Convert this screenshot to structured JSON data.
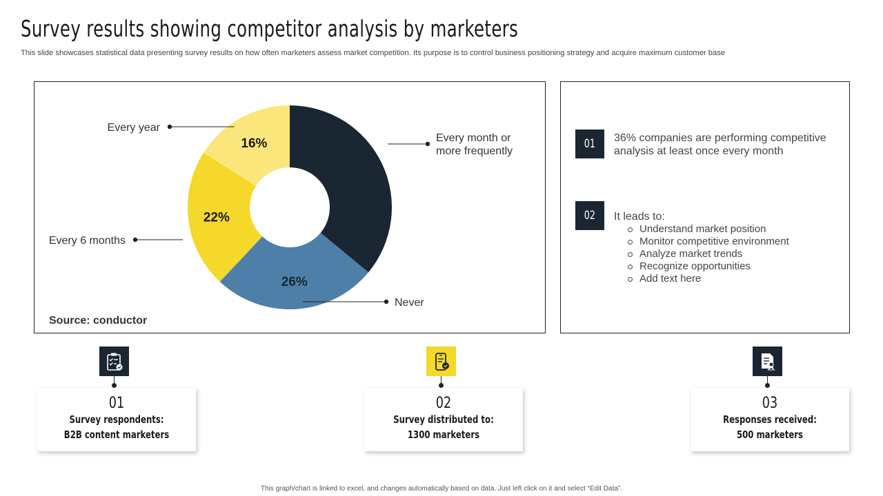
{
  "header": {
    "title": "Survey results showing competitor analysis by marketers",
    "subtitle": "This slide showcases statistical data presenting survey results on how often marketers assess market competition. Its purpose is to control business positioning strategy and acquire maximum customer base"
  },
  "chart_data": {
    "type": "pie",
    "variant": "donut",
    "categories": [
      "Every month or more frequently",
      "Never",
      "Every 6 months",
      "Every year"
    ],
    "values": [
      36,
      26,
      22,
      16
    ],
    "value_labels": [
      "36%",
      "26%",
      "22%",
      "16%"
    ],
    "colors": [
      "#1a2631",
      "#4d7fa8",
      "#f5d82a",
      "#fbe67c"
    ],
    "source": "Source: conductor"
  },
  "insights": [
    {
      "badge": "01",
      "text": "36% companies are performing competitive analysis at least once every month"
    },
    {
      "badge": "02",
      "text": "It leads to:",
      "bullets": [
        "Understand market position",
        "Monitor competitive environment",
        "Analyze market trends",
        "Recognize opportunities",
        "Add text here"
      ]
    }
  ],
  "stats": [
    {
      "number": "01",
      "line1": "Survey respondents:",
      "line2": "B2B content marketers",
      "icon": "clipboard-checklist-icon",
      "icon_color": "#1a2631"
    },
    {
      "number": "02",
      "line1": "Survey distributed to:",
      "line2": "1300 marketers",
      "icon": "mobile-check-icon",
      "icon_color": "#f5d82a"
    },
    {
      "number": "03",
      "line1": "Responses received:",
      "line2": "500 marketers",
      "icon": "document-user-icon",
      "icon_color": "#1a2631"
    }
  ],
  "footer": "This graph/chart is linked to excel, and changes automatically based on data. Just left click on it and select “Edit Data”."
}
